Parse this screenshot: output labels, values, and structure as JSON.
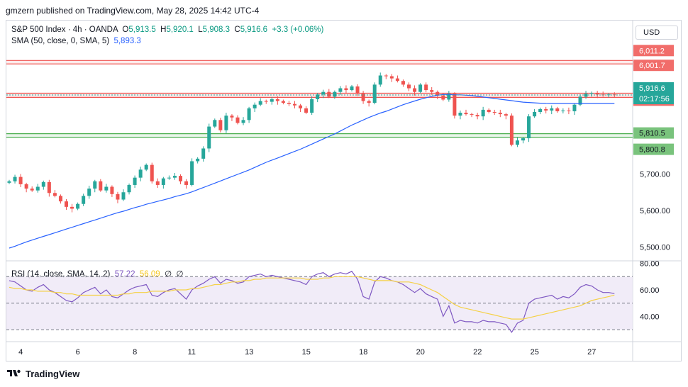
{
  "header": "gmzern published on TradingView.com, May 28, 2025 14:42 UTC-4",
  "footer": {
    "brand": "TradingView"
  },
  "currency": "USD",
  "legend": {
    "symbol": "S&P 500 Index · 4h · OANDA",
    "o_label": "O",
    "o": "5,913.5",
    "h_label": "H",
    "h": "5,920.1",
    "l_label": "L",
    "l": "5,908.3",
    "c_label": "C",
    "c": "5,916.6",
    "change": "+3.3 (+0.06%)",
    "sma_label": "SMA (50, close, 0, SMA, 5)",
    "sma_value": "5,893.3",
    "rsi_label": "RSI (14, close, SMA, 14, 2)",
    "rsi_value": "57.22",
    "rsi_sma_value": "56.09",
    "rsi_extra1": "∅",
    "rsi_extra2": "∅"
  },
  "colors": {
    "up": "#26a69a",
    "down": "#ef5350",
    "sma": "#2962ff",
    "rsi": "#7e57c2",
    "rsi_sma": "#f5d146",
    "resist": "#ef5350",
    "support": "#4caf50",
    "rsi_band": "#ede7f6"
  },
  "chart_data": {
    "type": "candlestick",
    "price_axis": {
      "ticks": [
        5500,
        5600,
        5700
      ],
      "tick_labels": [
        "5,500.00",
        "5,600.00",
        "5,700.00"
      ]
    },
    "x_ticks": [
      {
        "label": "4",
        "bar": 2
      },
      {
        "label": "6",
        "bar": 12
      },
      {
        "label": "8",
        "bar": 22
      },
      {
        "label": "11",
        "bar": 32
      },
      {
        "label": "13",
        "bar": 42
      },
      {
        "label": "15",
        "bar": 52
      },
      {
        "label": "18",
        "bar": 62
      },
      {
        "label": "20",
        "bar": 72
      },
      {
        "label": "22",
        "bar": 82
      },
      {
        "label": "25",
        "bar": 92
      },
      {
        "label": "27",
        "bar": 102
      }
    ],
    "levels": [
      {
        "label": "6,011.2",
        "value": 6011.2,
        "kind": "resist"
      },
      {
        "label": "6,001.7",
        "value": 6001.7,
        "kind": "resist"
      },
      {
        "label": "5,921.5",
        "value": 5921.5,
        "kind": "resist"
      },
      {
        "label": "5,910.1",
        "value": 5910.1,
        "kind": "resist"
      },
      {
        "label": "5,810.5",
        "value": 5810.5,
        "kind": "support"
      },
      {
        "label": "5,800.8",
        "value": 5800.8,
        "kind": "support"
      }
    ],
    "current": {
      "label": "5,916.6",
      "countdown": "02:17:56",
      "value": 5916.6
    },
    "closes": [
      5680,
      5692,
      5672,
      5660,
      5655,
      5665,
      5678,
      5648,
      5640,
      5625,
      5610,
      5605,
      5618,
      5640,
      5660,
      5680,
      5655,
      5665,
      5645,
      5630,
      5650,
      5670,
      5690,
      5712,
      5725,
      5680,
      5670,
      5688,
      5690,
      5695,
      5680,
      5670,
      5735,
      5742,
      5770,
      5830,
      5848,
      5820,
      5860,
      5855,
      5840,
      5848,
      5880,
      5890,
      5900,
      5898,
      5905,
      5900,
      5895,
      5892,
      5888,
      5880,
      5868,
      5905,
      5918,
      5925,
      5912,
      5925,
      5935,
      5930,
      5940,
      5920,
      5900,
      5895,
      5945,
      5970,
      5968,
      5962,
      5955,
      5945,
      5935,
      5925,
      5945,
      5930,
      5925,
      5915,
      5904,
      5920,
      5860,
      5868,
      5864,
      5862,
      5858,
      5876,
      5870,
      5868,
      5864,
      5860,
      5780,
      5792,
      5798,
      5858,
      5870,
      5878,
      5874,
      5880,
      5872,
      5874,
      5872,
      5890,
      5912,
      5920,
      5922,
      5918,
      5916,
      5918,
      5916.6
    ],
    "sma": [
      5497,
      5502,
      5508,
      5514,
      5519,
      5524,
      5529,
      5534,
      5539,
      5544,
      5549,
      5554,
      5559,
      5564,
      5569,
      5574,
      5579,
      5584,
      5589,
      5594,
      5598,
      5603,
      5608,
      5612,
      5617,
      5621,
      5625,
      5629,
      5633,
      5638,
      5642,
      5646,
      5651,
      5657,
      5663,
      5669,
      5675,
      5681,
      5687,
      5693,
      5699,
      5705,
      5711,
      5718,
      5725,
      5732,
      5738,
      5744,
      5750,
      5756,
      5762,
      5768,
      5775,
      5782,
      5789,
      5796,
      5803,
      5810,
      5818,
      5826,
      5834,
      5841,
      5848,
      5855,
      5861,
      5867,
      5872,
      5878,
      5884,
      5890,
      5895,
      5900,
      5905,
      5909,
      5913,
      5916,
      5918,
      5918,
      5917,
      5917,
      5916,
      5915,
      5913,
      5911,
      5909,
      5907,
      5905,
      5903,
      5901,
      5899,
      5897,
      5896,
      5895,
      5894,
      5893.5,
      5893.3,
      5893.3,
      5893.3,
      5893.3,
      5893.3,
      5893.3,
      5893.3,
      5893.3,
      5893.3,
      5893.3,
      5893.3,
      5893.3
    ],
    "rsi": {
      "levels": [
        30,
        50,
        70
      ],
      "axis_labels": [
        "80.00",
        "60.00",
        "40.00"
      ],
      "axis_values": [
        80,
        60,
        40
      ],
      "values": [
        67,
        66,
        63,
        60,
        59,
        62,
        64,
        60,
        58,
        55,
        52,
        51,
        54,
        58,
        60,
        62,
        57,
        60,
        55,
        54,
        57,
        60,
        62,
        63,
        64,
        56,
        55,
        58,
        60,
        61,
        57,
        53,
        60,
        63,
        65,
        68,
        70,
        65,
        68,
        67,
        65,
        66,
        70,
        71,
        72,
        70,
        71,
        70,
        69,
        68,
        67,
        66,
        64,
        70,
        72,
        73,
        70,
        72,
        73,
        72,
        74,
        68,
        55,
        53,
        66,
        70,
        69,
        67,
        66,
        64,
        61,
        58,
        61,
        57,
        55,
        53,
        40,
        48,
        35,
        37,
        36,
        36,
        35,
        37,
        36,
        36,
        35,
        34,
        28,
        35,
        37,
        50,
        53,
        54,
        55,
        56,
        53,
        55,
        54,
        57,
        62,
        64,
        63,
        60,
        58,
        58,
        57.2
      ],
      "sma_values": [
        62,
        61,
        61,
        60,
        60,
        59,
        59,
        59,
        58,
        58,
        57,
        57,
        56,
        56,
        56,
        56,
        56,
        56,
        56,
        56,
        57,
        57,
        58,
        58,
        58,
        59,
        59,
        59,
        59,
        60,
        60,
        60,
        61,
        61,
        62,
        63,
        64,
        64,
        65,
        66,
        66,
        67,
        67,
        68,
        68,
        69,
        69,
        69,
        69,
        69,
        69,
        69,
        68,
        68,
        68,
        69,
        69,
        70,
        70,
        70,
        70,
        70,
        69,
        68,
        67,
        67,
        67,
        67,
        66,
        66,
        66,
        65,
        64,
        62,
        60,
        58,
        55,
        52,
        49,
        47,
        46,
        45,
        44,
        43,
        42,
        41,
        40,
        39,
        38,
        38,
        38,
        39,
        40,
        41,
        42,
        43,
        44,
        45,
        46,
        47,
        48,
        50,
        52,
        53,
        54,
        55,
        56.1
      ]
    }
  }
}
